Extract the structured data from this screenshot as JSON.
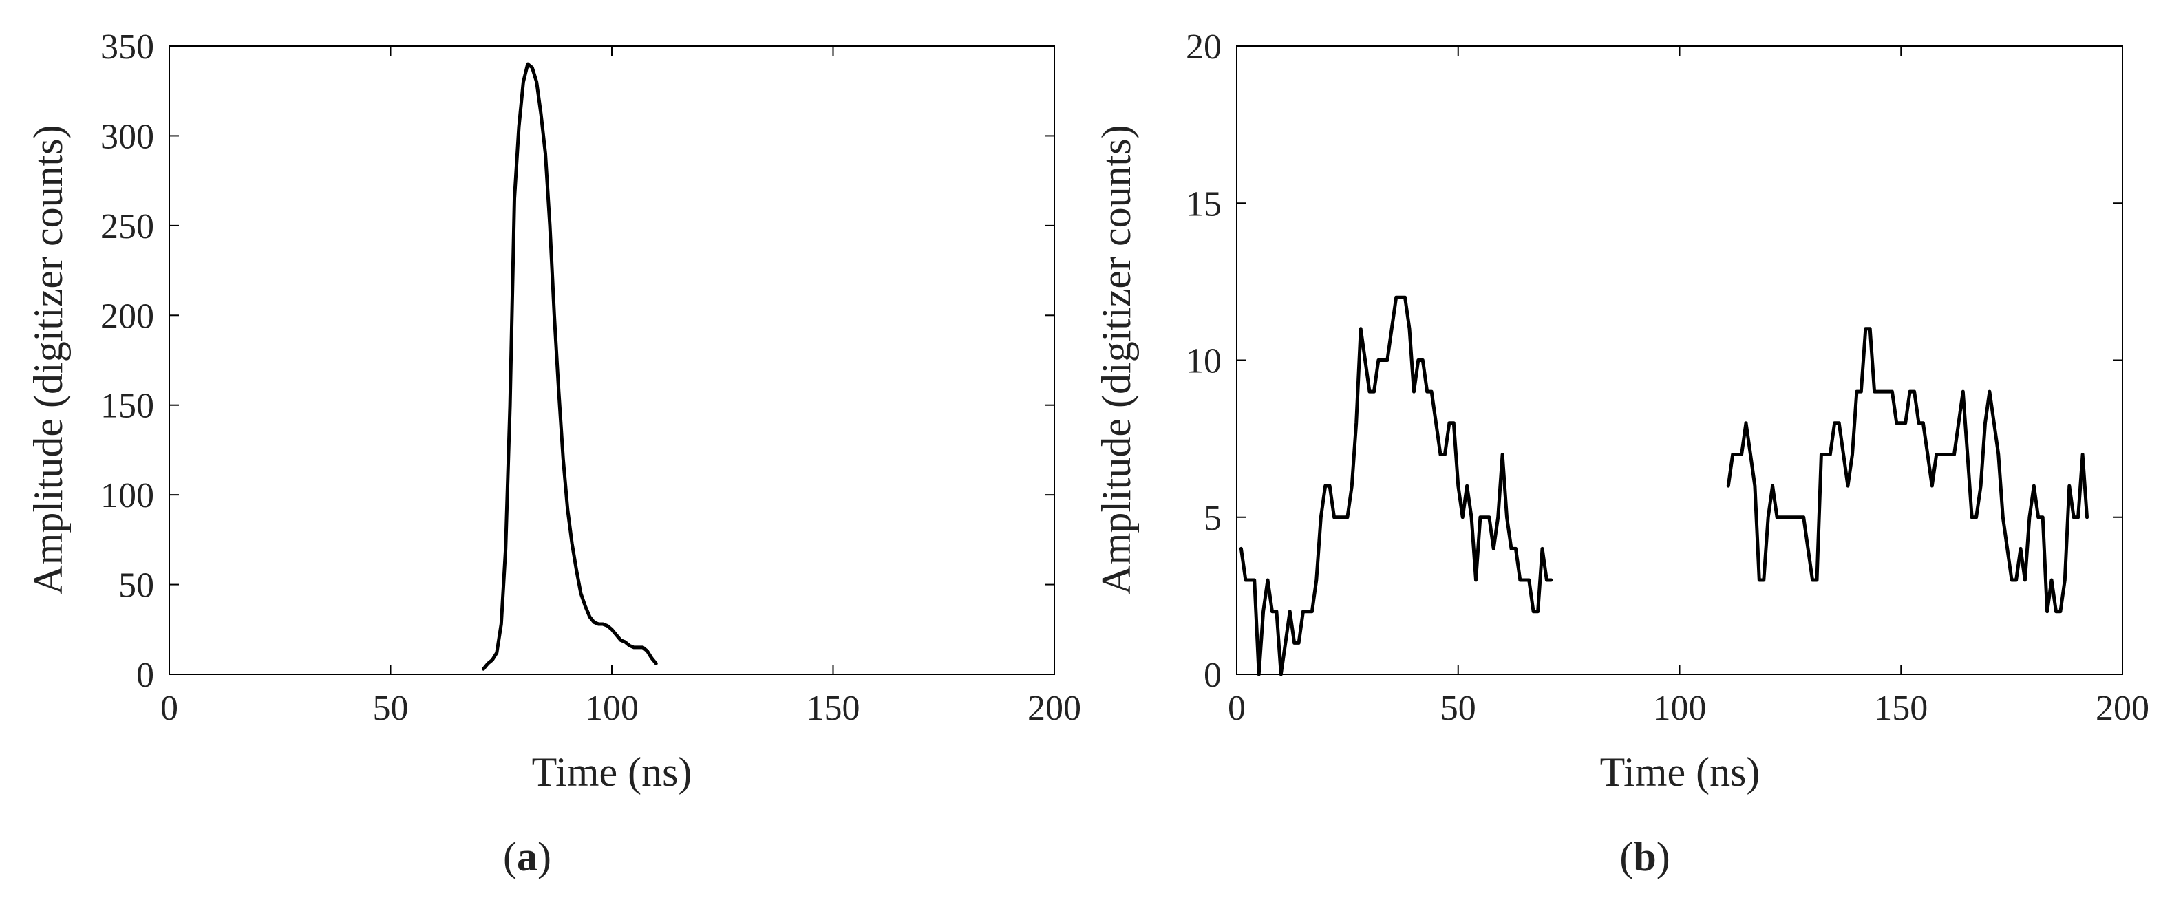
{
  "chart_data": [
    {
      "type": "line",
      "panel_label": "a",
      "xlabel": "Time (ns)",
      "ylabel": "Amplitude (digitizer counts)",
      "xlim": [
        0,
        200
      ],
      "ylim": [
        0,
        350
      ],
      "xticks": [
        0,
        50,
        100,
        150,
        200
      ],
      "yticks": [
        0,
        50,
        100,
        150,
        200,
        250,
        300,
        350
      ],
      "grid": false,
      "line_color": "#000000",
      "series": [
        {
          "x": [
            71,
            72,
            73,
            74,
            75,
            76,
            77,
            78,
            79,
            80,
            81,
            82,
            83,
            84,
            85,
            86,
            87,
            88,
            89,
            90,
            91,
            92,
            93,
            94,
            95,
            96,
            97,
            98,
            99,
            100,
            101,
            102,
            103,
            104,
            105,
            106,
            107,
            108,
            109,
            110
          ],
          "y": [
            3,
            6,
            8,
            12,
            28,
            70,
            150,
            265,
            305,
            330,
            340,
            338,
            330,
            312,
            290,
            250,
            200,
            158,
            120,
            92,
            73,
            58,
            45,
            38,
            32,
            29,
            28,
            28,
            27,
            25,
            22,
            19,
            18,
            16,
            15,
            15,
            15,
            13,
            9,
            6
          ]
        }
      ]
    },
    {
      "type": "line",
      "panel_label": "b",
      "xlabel": "Time (ns)",
      "ylabel": "Amplitude (digitizer counts)",
      "xlim": [
        0,
        200
      ],
      "ylim": [
        0,
        20
      ],
      "xticks": [
        0,
        50,
        100,
        150,
        200
      ],
      "yticks": [
        0,
        5,
        10,
        15,
        20
      ],
      "grid": false,
      "line_color": "#000000",
      "series": [
        {
          "x": [
            1,
            2,
            3,
            4,
            5,
            6,
            7,
            8,
            9,
            10,
            11,
            12,
            13,
            14,
            15,
            16,
            17,
            18,
            19,
            20,
            21,
            22,
            23,
            24,
            25,
            26,
            27,
            28,
            29,
            30,
            31,
            32,
            33,
            34,
            35,
            36,
            37,
            38,
            39,
            40,
            41,
            42,
            43,
            44,
            45,
            46,
            47,
            48,
            49,
            50,
            51,
            52,
            53,
            54,
            55,
            56,
            57,
            58,
            59,
            60,
            61,
            62,
            63,
            64,
            65,
            66,
            67,
            68,
            69,
            70,
            71
          ],
          "y": [
            4,
            3,
            3,
            3,
            0,
            2,
            3,
            2,
            2,
            0,
            1,
            2,
            1,
            1,
            2,
            2,
            2,
            3,
            5,
            6,
            6,
            5,
            5,
            5,
            5,
            6,
            8,
            11,
            10,
            9,
            9,
            10,
            10,
            10,
            11,
            12,
            12,
            12,
            11,
            9,
            10,
            10,
            9,
            9,
            8,
            7,
            7,
            8,
            8,
            6,
            5,
            6,
            5,
            3,
            5,
            5,
            5,
            4,
            5,
            7,
            5,
            4,
            4,
            3,
            3,
            3,
            2,
            2,
            4,
            3,
            3
          ]
        },
        {
          "x": [
            111,
            112,
            113,
            114,
            115,
            116,
            117,
            118,
            119,
            120,
            121,
            122,
            123,
            124,
            125,
            126,
            127,
            128,
            129,
            130,
            131,
            132,
            133,
            134,
            135,
            136,
            137,
            138,
            139,
            140,
            141,
            142,
            143,
            144,
            145,
            146,
            147,
            148,
            149,
            150,
            151,
            152,
            153,
            154,
            155,
            156,
            157,
            158,
            159,
            160,
            161,
            162,
            163,
            164,
            165,
            166,
            167,
            168,
            169,
            170,
            171,
            172,
            173,
            174,
            175,
            176,
            177,
            178,
            179,
            180,
            181,
            182,
            183,
            184,
            185,
            186,
            187,
            188,
            189,
            190,
            191,
            192
          ],
          "y": [
            6,
            7,
            7,
            7,
            8,
            7,
            6,
            3,
            3,
            5,
            6,
            5,
            5,
            5,
            5,
            5,
            5,
            5,
            4,
            3,
            3,
            7,
            7,
            7,
            8,
            8,
            7,
            6,
            7,
            9,
            9,
            11,
            11,
            9,
            9,
            9,
            9,
            9,
            8,
            8,
            8,
            9,
            9,
            8,
            8,
            7,
            6,
            7,
            7,
            7,
            7,
            7,
            8,
            9,
            7,
            5,
            5,
            6,
            8,
            9,
            8,
            7,
            5,
            4,
            3,
            3,
            4,
            3,
            5,
            6,
            5,
            5,
            2,
            3,
            2,
            2,
            3,
            6,
            5,
            5,
            7,
            5
          ]
        }
      ]
    }
  ]
}
